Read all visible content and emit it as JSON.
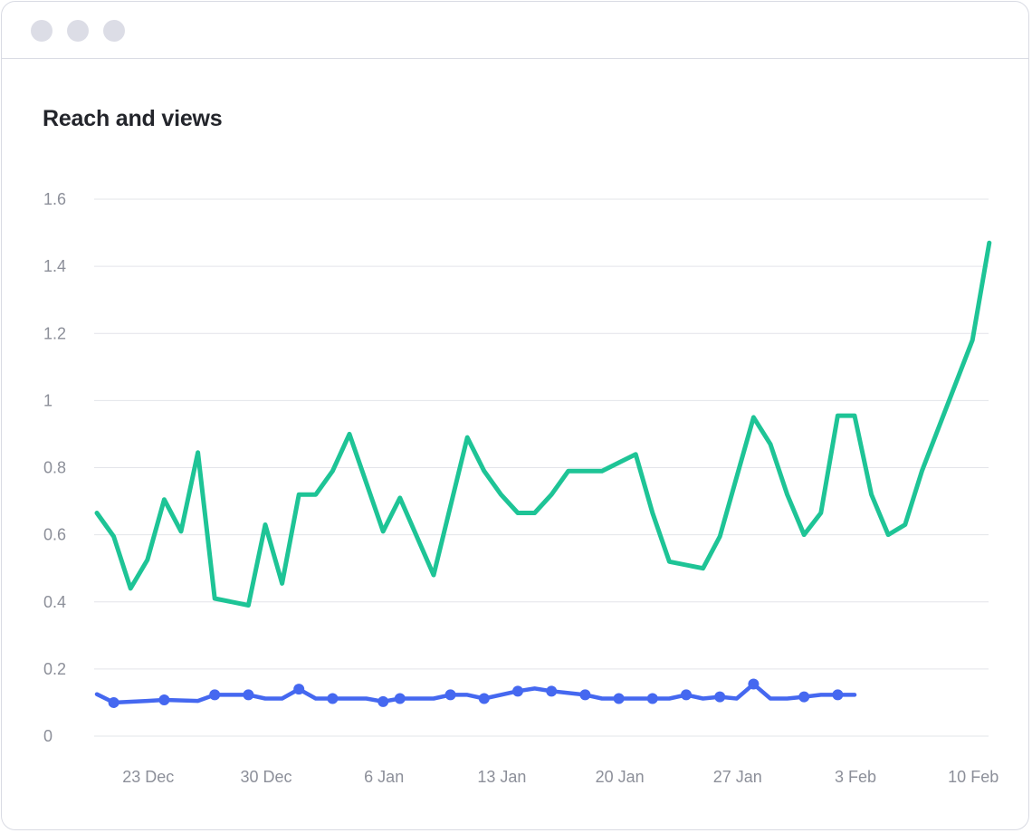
{
  "window": {
    "controls": [
      "window-dot-1",
      "window-dot-2",
      "window-dot-3"
    ],
    "control_color": "#dcdde6"
  },
  "chart_data": {
    "type": "line",
    "title": "Reach and views",
    "xlabel": "",
    "ylabel": "",
    "ylim": [
      0,
      1.6
    ],
    "y_ticks": [
      "0",
      "0.2",
      "0.4",
      "0.6",
      "0.8",
      "1",
      "1.2",
      "1.4",
      "1.6"
    ],
    "x_ticks": [
      "23 Dec",
      "30 Dec",
      "6 Jan",
      "13 Jan",
      "20 Jan",
      "27 Jan",
      "3 Feb",
      "10 Feb"
    ],
    "x_start": "2024-12-20",
    "grid": true,
    "legend": "none",
    "series": [
      {
        "color": "#1ec496",
        "markers": false,
        "points": [
          [
            "2024-12-20",
            0.665
          ],
          [
            "2024-12-21",
            0.595
          ],
          [
            "2024-12-22",
            0.44
          ],
          [
            "2024-12-23",
            0.525
          ],
          [
            "2024-12-24",
            0.705
          ],
          [
            "2024-12-25",
            0.61
          ],
          [
            "2024-12-26",
            0.845
          ],
          [
            "2024-12-27",
            0.41
          ],
          [
            "2024-12-29",
            0.39
          ],
          [
            "2024-12-30",
            0.63
          ],
          [
            "2024-12-31",
            0.455
          ],
          [
            "2025-01-01",
            0.72
          ],
          [
            "2025-01-02",
            0.72
          ],
          [
            "2025-01-03",
            0.79
          ],
          [
            "2025-01-04",
            0.9
          ],
          [
            "2025-01-06",
            0.61
          ],
          [
            "2025-01-07",
            0.71
          ],
          [
            "2025-01-09",
            0.48
          ],
          [
            "2025-01-11",
            0.89
          ],
          [
            "2025-01-12",
            0.79
          ],
          [
            "2025-01-13",
            0.72
          ],
          [
            "2025-01-14",
            0.665
          ],
          [
            "2025-01-15",
            0.665
          ],
          [
            "2025-01-16",
            0.72
          ],
          [
            "2025-01-17",
            0.79
          ],
          [
            "2025-01-19",
            0.79
          ],
          [
            "2025-01-21",
            0.84
          ],
          [
            "2025-01-22",
            0.665
          ],
          [
            "2025-01-23",
            0.52
          ],
          [
            "2025-01-25",
            0.5
          ],
          [
            "2025-01-26",
            0.595
          ],
          [
            "2025-01-28",
            0.95
          ],
          [
            "2025-01-29",
            0.87
          ],
          [
            "2025-01-30",
            0.72
          ],
          [
            "2025-01-31",
            0.6
          ],
          [
            "2025-02-01",
            0.665
          ],
          [
            "2025-02-02",
            0.955
          ],
          [
            "2025-02-03",
            0.955
          ],
          [
            "2025-02-04",
            0.72
          ],
          [
            "2025-02-05",
            0.6
          ],
          [
            "2025-02-06",
            0.63
          ],
          [
            "2025-02-07",
            0.79
          ],
          [
            "2025-02-09",
            1.05
          ],
          [
            "2025-02-10",
            1.18
          ],
          [
            "2025-02-11",
            1.47
          ]
        ]
      },
      {
        "color": "#4568f0",
        "markers": true,
        "points": [
          [
            "2024-12-20",
            0.125,
            0
          ],
          [
            "2024-12-21",
            0.1,
            1
          ],
          [
            "2024-12-23",
            0.105,
            0
          ],
          [
            "2024-12-24",
            0.108,
            1
          ],
          [
            "2024-12-26",
            0.105,
            0
          ],
          [
            "2024-12-27",
            0.123,
            1
          ],
          [
            "2024-12-29",
            0.123,
            1
          ],
          [
            "2024-12-30",
            0.112,
            0
          ],
          [
            "2024-12-31",
            0.112,
            0
          ],
          [
            "2025-01-01",
            0.14,
            1
          ],
          [
            "2025-01-02",
            0.112,
            0
          ],
          [
            "2025-01-03",
            0.112,
            1
          ],
          [
            "2025-01-05",
            0.112,
            0
          ],
          [
            "2025-01-06",
            0.103,
            1
          ],
          [
            "2025-01-07",
            0.112,
            1
          ],
          [
            "2025-01-09",
            0.112,
            0
          ],
          [
            "2025-01-10",
            0.123,
            1
          ],
          [
            "2025-01-11",
            0.123,
            0
          ],
          [
            "2025-01-12",
            0.112,
            1
          ],
          [
            "2025-01-14",
            0.134,
            1
          ],
          [
            "2025-01-15",
            0.142,
            0
          ],
          [
            "2025-01-16",
            0.134,
            1
          ],
          [
            "2025-01-18",
            0.123,
            1
          ],
          [
            "2025-01-19",
            0.112,
            0
          ],
          [
            "2025-01-20",
            0.112,
            1
          ],
          [
            "2025-01-22",
            0.112,
            1
          ],
          [
            "2025-01-23",
            0.112,
            0
          ],
          [
            "2025-01-24",
            0.123,
            1
          ],
          [
            "2025-01-25",
            0.112,
            0
          ],
          [
            "2025-01-26",
            0.117,
            1
          ],
          [
            "2025-01-27",
            0.112,
            0
          ],
          [
            "2025-01-28",
            0.155,
            1
          ],
          [
            "2025-01-29",
            0.112,
            0
          ],
          [
            "2025-01-30",
            0.112,
            0
          ],
          [
            "2025-01-31",
            0.117,
            1
          ],
          [
            "2025-02-01",
            0.123,
            0
          ],
          [
            "2025-02-02",
            0.123,
            1
          ],
          [
            "2025-02-03",
            0.123,
            0
          ]
        ]
      }
    ]
  }
}
